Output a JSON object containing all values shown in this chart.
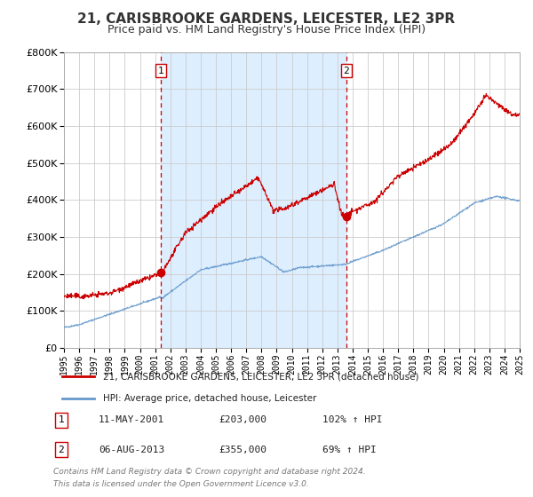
{
  "title": "21, CARISBROOKE GARDENS, LEICESTER, LE2 3PR",
  "subtitle": "Price paid vs. HM Land Registry's House Price Index (HPI)",
  "title_fontsize": 11,
  "subtitle_fontsize": 9,
  "background_color": "#ffffff",
  "plot_bg_color": "#ffffff",
  "shaded_region_color": "#ddeeff",
  "grid_color": "#cccccc",
  "xmin": 1995,
  "xmax": 2025,
  "ymin": 0,
  "ymax": 800000,
  "yticks": [
    0,
    100000,
    200000,
    300000,
    400000,
    500000,
    600000,
    700000,
    800000
  ],
  "ytick_labels": [
    "£0",
    "£100K",
    "£200K",
    "£300K",
    "£400K",
    "£500K",
    "£600K",
    "£700K",
    "£800K"
  ],
  "xticks": [
    1995,
    1996,
    1997,
    1998,
    1999,
    2000,
    2001,
    2002,
    2003,
    2004,
    2005,
    2006,
    2007,
    2008,
    2009,
    2010,
    2011,
    2012,
    2013,
    2014,
    2015,
    2016,
    2017,
    2018,
    2019,
    2020,
    2021,
    2022,
    2023,
    2024,
    2025
  ],
  "sale1_date": 2001.36,
  "sale1_price": 203000,
  "sale1_label": "1",
  "sale1_date_str": "11-MAY-2001",
  "sale1_price_str": "£203,000",
  "sale1_hpi_str": "102% ↑ HPI",
  "sale2_date": 2013.59,
  "sale2_price": 355000,
  "sale2_label": "2",
  "sale2_date_str": "06-AUG-2013",
  "sale2_price_str": "£355,000",
  "sale2_hpi_str": "69% ↑ HPI",
  "line1_color": "#cc0000",
  "line2_color": "#6699cc",
  "marker_color": "#cc0000",
  "dashed_line_color": "#cc0000",
  "legend1_label": "21, CARISBROOKE GARDENS, LEICESTER, LE2 3PR (detached house)",
  "legend2_label": "HPI: Average price, detached house, Leicester",
  "footer_line1": "Contains HM Land Registry data © Crown copyright and database right 2024.",
  "footer_line2": "This data is licensed under the Open Government Licence v3.0."
}
